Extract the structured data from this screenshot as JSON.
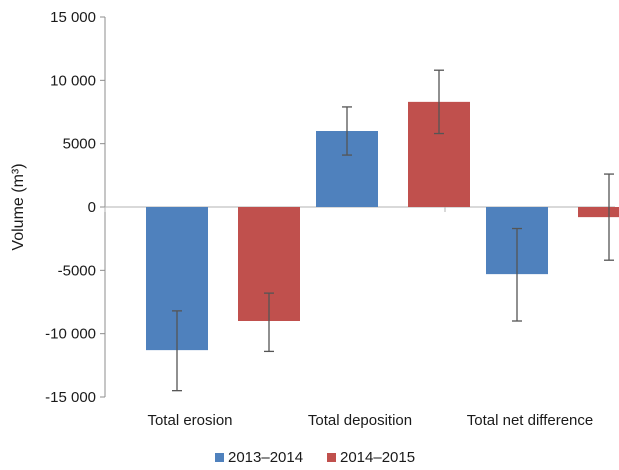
{
  "chart_data": {
    "type": "bar",
    "title": "",
    "xlabel": "",
    "ylabel": "Volume (m³)",
    "ylim": [
      -15000,
      15000
    ],
    "yticks": [
      15000,
      10000,
      5000,
      0,
      -5000,
      -10000,
      -15000
    ],
    "ytick_labels": [
      "15 000",
      "10 000",
      "5000",
      "0",
      "-5000",
      "-10 000",
      "-15 000"
    ],
    "grid": false,
    "legend_position": "bottom-center",
    "categories": [
      "Total erosion",
      "Total deposition",
      "Total net difference"
    ],
    "series": [
      {
        "name": "2013–2014",
        "color": "#4f81bd",
        "values": [
          -11300,
          6000,
          -5300
        ],
        "error_low": [
          -14500,
          4100,
          -9000
        ],
        "error_high": [
          -8200,
          7900,
          -1700
        ]
      },
      {
        "name": "2014–2015",
        "color": "#c0504d",
        "values": [
          -9000,
          8300,
          -800
        ],
        "error_low": [
          -11400,
          5800,
          -4200
        ],
        "error_high": [
          -6800,
          10800,
          2600
        ]
      }
    ],
    "error_bar_color": "#555555"
  }
}
